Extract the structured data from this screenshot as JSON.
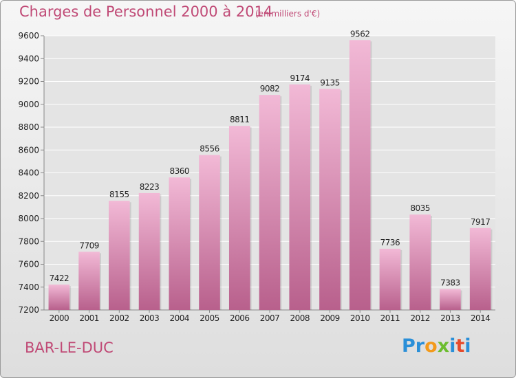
{
  "header": {
    "title": "Charges de Personnel 2000 à 2014",
    "subtitle": "(en milliers d'€)"
  },
  "footer": {
    "city": "BAR-LE-DUC",
    "logo": "Proxiti",
    "logo_colors": [
      "#2a8fd8",
      "#2a8fd8",
      "#f39a1b",
      "#6cbd2f",
      "#2a8fd8",
      "#e64a2b",
      "#2a8fd8"
    ]
  },
  "colors": {
    "bar_top": "#f2b9d6",
    "bar_bottom": "#b8608c",
    "accent": "#c04a76",
    "grid": "#ffffff",
    "axis_text": "#222222"
  },
  "chart_data": {
    "type": "bar",
    "categories": [
      "2000",
      "2001",
      "2002",
      "2003",
      "2004",
      "2005",
      "2006",
      "2007",
      "2008",
      "2009",
      "2010",
      "2011",
      "2012",
      "2013",
      "2014"
    ],
    "values": [
      7422,
      7709,
      8155,
      8223,
      8360,
      8556,
      8811,
      9082,
      9174,
      9135,
      9562,
      7736,
      8035,
      7383,
      7917
    ],
    "ylim": [
      7200,
      9600
    ],
    "yticks": [
      7200,
      7400,
      7600,
      7800,
      8000,
      8200,
      8400,
      8600,
      8800,
      9000,
      9200,
      9400,
      9600
    ],
    "grid": true,
    "data_labels": true
  }
}
